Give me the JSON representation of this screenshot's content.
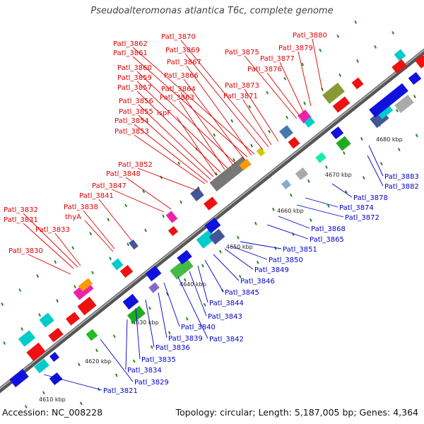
{
  "title": "Pseudoalteromonas atlantica T6c, complete genome",
  "accession_text": "Accession: NC_008228",
  "summary_text": "Topology: circular; Length: 5,187,005 bp; Genes: 4,364",
  "colors": {
    "upper_label": "#dd0000",
    "lower_label": "#0000cc",
    "forward_gene": "#ee1111",
    "reverse_gene": "#1111dd",
    "backbone": "#888888",
    "tick_mark": "#228822"
  },
  "kbp_ticks": [
    "4610 kbp",
    "4620 kbp",
    "4630 kbp",
    "4640 kbp",
    "4650 kbp",
    "4660 kbp",
    "4670 kbp",
    "4680 kbp"
  ],
  "upper_labels": [
    "Patl_3830",
    "Patl_3831",
    "Patl_3832",
    "Patl_3833",
    "thyA",
    "Patl_3838",
    "Patl_3841",
    "Patl_3847",
    "Patl_3848",
    "Patl_3852",
    "Patl_3853",
    "Patl_3854",
    "Patl_3855",
    "Patl_3856",
    "ispF",
    "Patl_3857",
    "Patl_3863",
    "Patl_3859",
    "Patl_3864",
    "Patl_3860",
    "Patl_3866",
    "Patl_3861",
    "Patl_3867",
    "Patl_3862",
    "Patl_3869",
    "Patl_3870",
    "Patl_3871",
    "Patl_3873",
    "Patl_3875",
    "Patl_3876",
    "Patl_3877",
    "Patl_3879",
    "Patl_3880"
  ],
  "lower_labels": [
    "Patl_3821",
    "Patl_3829",
    "Patl_3834",
    "Patl_3835",
    "Patl_3836",
    "Patl_3839",
    "Patl_3840",
    "Patl_3842",
    "Patl_3843",
    "Patl_3844",
    "Patl_3845",
    "Patl_3846",
    "Patl_3849",
    "Patl_3850",
    "Patl_3851",
    "Patl_3865",
    "Patl_3868",
    "Patl_3872",
    "Patl_3874",
    "Patl_3878",
    "Patl_3882",
    "Patl_3883"
  ]
}
